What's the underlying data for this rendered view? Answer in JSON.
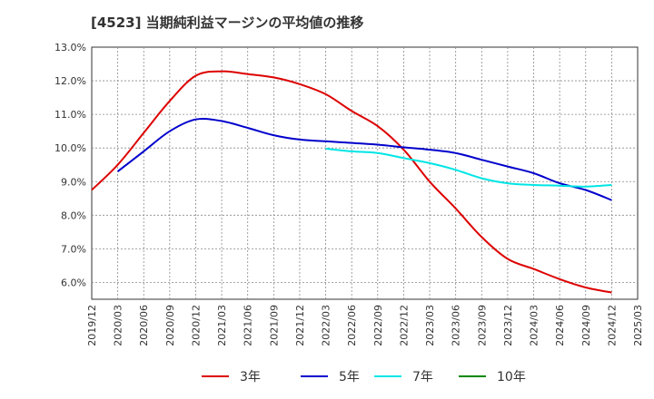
{
  "chart_data": {
    "type": "line",
    "title": "[4523]  当期純利益マージンの平均値の推移",
    "xlabel": "",
    "ylabel": "",
    "x": [
      "2019/12",
      "2020/03",
      "2020/06",
      "2020/09",
      "2020/12",
      "2021/03",
      "2021/06",
      "2021/09",
      "2021/12",
      "2022/03",
      "2022/06",
      "2022/09",
      "2022/12",
      "2023/03",
      "2023/06",
      "2023/09",
      "2023/12",
      "2024/03",
      "2024/06",
      "2024/09",
      "2024/12",
      "2025/03"
    ],
    "y_ticks": [
      "6.0%",
      "7.0%",
      "8.0%",
      "9.0%",
      "10.0%",
      "11.0%",
      "12.0%",
      "13.0%"
    ],
    "ylim": [
      5.5,
      13.0
    ],
    "grid": true,
    "legend_position": "bottom",
    "series": [
      {
        "name": "3年",
        "color": "#dd0000",
        "values": [
          8.75,
          9.5,
          10.45,
          11.4,
          12.15,
          12.28,
          12.2,
          12.1,
          11.9,
          11.6,
          11.1,
          10.65,
          9.95,
          9.0,
          8.2,
          7.35,
          6.7,
          6.4,
          6.1,
          5.85,
          5.7,
          null
        ]
      },
      {
        "name": "5年",
        "color": "#0000cc",
        "values": [
          null,
          9.3,
          9.9,
          10.5,
          10.85,
          10.8,
          10.6,
          10.38,
          10.25,
          10.2,
          10.15,
          10.1,
          10.02,
          9.95,
          9.85,
          9.65,
          9.45,
          9.25,
          8.95,
          8.75,
          8.45,
          null
        ]
      },
      {
        "name": "7年",
        "color": "#00e5e5",
        "values": [
          null,
          null,
          null,
          null,
          null,
          null,
          null,
          null,
          null,
          9.98,
          9.9,
          9.85,
          9.7,
          9.55,
          9.35,
          9.1,
          8.95,
          8.9,
          8.88,
          8.85,
          8.9,
          null
        ]
      },
      {
        "name": "10年",
        "color": "#008800",
        "values": [
          null,
          null,
          null,
          null,
          null,
          null,
          null,
          null,
          null,
          null,
          null,
          null,
          null,
          null,
          null,
          null,
          null,
          null,
          null,
          null,
          null,
          null
        ]
      }
    ]
  }
}
